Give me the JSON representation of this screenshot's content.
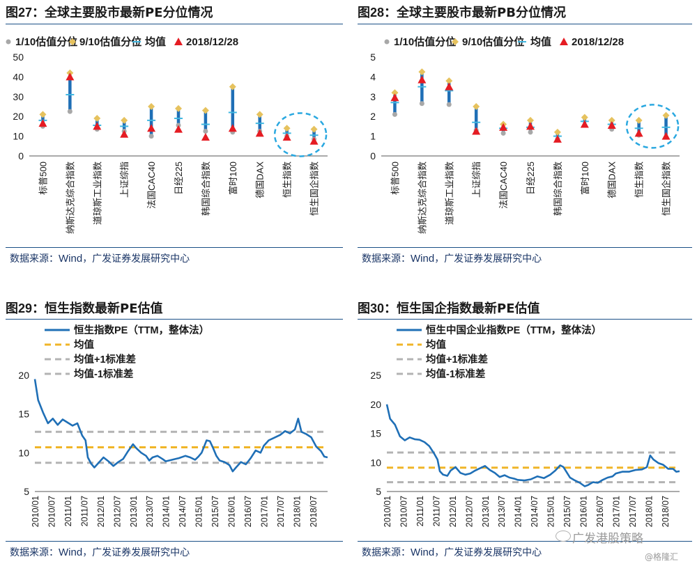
{
  "colors": {
    "blue": "#1f6fb6",
    "gray": "#a8a8a8",
    "gold": "#e6c25e",
    "avg": "#3fb6e0",
    "red": "#e51c23",
    "ring": "#2aa8e0",
    "line": "#1f6fb6",
    "mean": "#f0b528",
    "band": "#b3b3b3",
    "text": "#1a1a1a",
    "rule": "#1a4f86"
  },
  "source": {
    "prefix": "数据来源：",
    "wind": "Wind",
    "suffix": "，广发证券发展研究中心"
  },
  "watermark": {
    "account": "广发港股策略",
    "site": "@格隆汇"
  },
  "legend_range": {
    "p10": "1/10估值分位",
    "p90": "9/10估值分位",
    "avg": "均值",
    "latest": "2018/12/28"
  },
  "legend_line": {
    "mean": "均值",
    "plus": "均值+1标准差",
    "minus": "均值-1标准差"
  },
  "fig27": {
    "label": "图27",
    "title": "：全球主要股市最新PE分位情况"
  },
  "fig28": {
    "label": "图28",
    "title": "：全球主要股市最新PB分位情况"
  },
  "fig29": {
    "label": "图29",
    "title": "：恒生指数最新PE估值"
  },
  "fig30": {
    "label": "图30",
    "title": "：恒生国企指数最新PE估值"
  },
  "chart_data": [
    {
      "type": "range",
      "categories": [
        "标普500",
        "纳斯达克综合指数",
        "道琼斯工业指数",
        "上证综指",
        "法国CAC40",
        "日经225",
        "韩国综合指数",
        "富时100",
        "德国DAX",
        "恒生指数",
        "恒生国企指数"
      ],
      "ylim": [
        0,
        50
      ],
      "yticks": [
        0,
        10,
        20,
        30,
        40,
        50
      ],
      "series": [
        {
          "name": "1/10估值分位",
          "values": [
            15,
            22.5,
            13.5,
            12.5,
            10,
            15.5,
            12.5,
            12,
            12.5,
            10,
            8.5
          ]
        },
        {
          "name": "9/10估值分位",
          "values": [
            21,
            42,
            19,
            18,
            25,
            24,
            23,
            35,
            21,
            14,
            13.5
          ]
        },
        {
          "name": "均值",
          "values": [
            18,
            31,
            15.5,
            15,
            18,
            19,
            16,
            22,
            16.5,
            11.5,
            10.5
          ]
        },
        {
          "name": "2018/12/28",
          "values": [
            16.5,
            40,
            15,
            11,
            14,
            13.5,
            9.5,
            14,
            11.5,
            9.5,
            7.5
          ]
        }
      ],
      "highlight": [
        "恒生指数",
        "恒生国企指数"
      ]
    },
    {
      "type": "range",
      "categories": [
        "标普500",
        "纳斯达克综合指数",
        "道琼斯工业指数",
        "上证综指",
        "法国CAC40",
        "日经225",
        "韩国综合指数",
        "富时100",
        "德国DAX",
        "恒生指数",
        "恒生国企指数"
      ],
      "ylim": [
        0,
        5
      ],
      "yticks": [
        0,
        1,
        2,
        3,
        4,
        5
      ],
      "series": [
        {
          "name": "1/10估值分位",
          "values": [
            2.1,
            2.65,
            2.6,
            1.3,
            1.15,
            1.2,
            0.85,
            1.55,
            1.35,
            1.05,
            0.95
          ]
        },
        {
          "name": "9/10估值分位",
          "values": [
            3.2,
            4.25,
            3.8,
            2.5,
            1.6,
            1.8,
            1.2,
            1.95,
            1.8,
            1.8,
            2.05
          ]
        },
        {
          "name": "均值",
          "values": [
            2.7,
            3.5,
            3.3,
            1.7,
            1.4,
            1.45,
            1.0,
            1.75,
            1.6,
            1.4,
            1.45
          ]
        },
        {
          "name": "2018/12/28",
          "values": [
            2.95,
            3.85,
            3.5,
            1.25,
            1.45,
            1.5,
            0.85,
            1.6,
            1.55,
            1.15,
            1.0
          ]
        }
      ],
      "highlight": [
        "恒生指数",
        "恒生国企指数"
      ]
    },
    {
      "type": "line",
      "x_start": "2010-01",
      "x_end": "2018-12",
      "xticks": [
        "2010/01",
        "2010/07",
        "2011/01",
        "2011/07",
        "2012/01",
        "2012/07",
        "2013/01",
        "2013/07",
        "2014/01",
        "2014/07",
        "2015/01",
        "2015/07",
        "2016/01",
        "2016/07",
        "2017/01",
        "2017/07",
        "2018/01",
        "2018/07"
      ],
      "ylim": [
        5,
        20
      ],
      "yticks": [
        5,
        10,
        15,
        20
      ],
      "series": [
        {
          "name": "恒生指数PE（TTM，整体法）",
          "values": [
            [
              2010.0,
              19.5
            ],
            [
              2010.1,
              16.8
            ],
            [
              2010.25,
              15.2
            ],
            [
              2010.4,
              13.8
            ],
            [
              2010.55,
              14.4
            ],
            [
              2010.7,
              13.6
            ],
            [
              2010.85,
              14.3
            ],
            [
              2011.0,
              13.9
            ],
            [
              2011.15,
              13.5
            ],
            [
              2011.3,
              13.8
            ],
            [
              2011.45,
              12.2
            ],
            [
              2011.55,
              11.6
            ],
            [
              2011.62,
              9.4
            ],
            [
              2011.72,
              8.6
            ],
            [
              2011.82,
              8.1
            ],
            [
              2011.95,
              8.7
            ],
            [
              2012.1,
              9.4
            ],
            [
              2012.25,
              8.9
            ],
            [
              2012.4,
              8.3
            ],
            [
              2012.55,
              8.8
            ],
            [
              2012.7,
              9.2
            ],
            [
              2012.85,
              10.2
            ],
            [
              2013.0,
              11.1
            ],
            [
              2013.1,
              10.6
            ],
            [
              2013.25,
              10.0
            ],
            [
              2013.4,
              9.6
            ],
            [
              2013.5,
              9.0
            ],
            [
              2013.6,
              9.4
            ],
            [
              2013.75,
              9.6
            ],
            [
              2013.9,
              9.2
            ],
            [
              2014.0,
              8.9
            ],
            [
              2014.2,
              9.1
            ],
            [
              2014.4,
              9.3
            ],
            [
              2014.6,
              9.6
            ],
            [
              2014.75,
              9.4
            ],
            [
              2014.9,
              9.1
            ],
            [
              2015.0,
              9.5
            ],
            [
              2015.1,
              10.0
            ],
            [
              2015.25,
              11.6
            ],
            [
              2015.35,
              11.5
            ],
            [
              2015.45,
              10.6
            ],
            [
              2015.55,
              9.6
            ],
            [
              2015.65,
              9.0
            ],
            [
              2015.8,
              8.8
            ],
            [
              2015.95,
              8.4
            ],
            [
              2016.05,
              7.6
            ],
            [
              2016.15,
              8.1
            ],
            [
              2016.3,
              8.8
            ],
            [
              2016.45,
              8.5
            ],
            [
              2016.6,
              9.3
            ],
            [
              2016.75,
              10.3
            ],
            [
              2016.9,
              10.0
            ],
            [
              2017.0,
              10.9
            ],
            [
              2017.15,
              11.6
            ],
            [
              2017.3,
              11.9
            ],
            [
              2017.5,
              12.3
            ],
            [
              2017.65,
              12.8
            ],
            [
              2017.8,
              12.5
            ],
            [
              2017.95,
              13.0
            ],
            [
              2018.05,
              14.4
            ],
            [
              2018.15,
              12.7
            ],
            [
              2018.3,
              12.4
            ],
            [
              2018.45,
              12.0
            ],
            [
              2018.6,
              10.8
            ],
            [
              2018.75,
              10.2
            ],
            [
              2018.85,
              9.5
            ],
            [
              2018.95,
              9.4
            ]
          ]
        },
        {
          "name": "均值",
          "values": [
            [
              2010.0,
              10.7
            ],
            [
              2018.95,
              10.7
            ]
          ]
        },
        {
          "name": "均值+1标准差",
          "values": [
            [
              2010.0,
              12.7
            ],
            [
              2018.95,
              12.7
            ]
          ]
        },
        {
          "name": "均值-1标准差",
          "values": [
            [
              2010.0,
              8.7
            ],
            [
              2018.95,
              8.7
            ]
          ]
        }
      ]
    },
    {
      "type": "line",
      "x_start": "2010-01",
      "x_end": "2018-12",
      "xticks": [
        "2010/01",
        "2010/07",
        "2011/01",
        "2011/07",
        "2012/01",
        "2012/07",
        "2013/01",
        "2013/07",
        "2014/01",
        "2014/07",
        "2015/01",
        "2015/07",
        "2016/01",
        "2016/07",
        "2017/01",
        "2017/07",
        "2018/01",
        "2018/07"
      ],
      "ylim": [
        5,
        25
      ],
      "yticks": [
        5,
        10,
        15,
        20,
        25
      ],
      "series": [
        {
          "name": "恒生中国企业指数PE（TTM，整体法）",
          "values": [
            [
              2010.0,
              20.0
            ],
            [
              2010.1,
              17.5
            ],
            [
              2010.25,
              16.5
            ],
            [
              2010.4,
              14.5
            ],
            [
              2010.55,
              13.8
            ],
            [
              2010.7,
              14.3
            ],
            [
              2010.85,
              14.0
            ],
            [
              2011.0,
              13.9
            ],
            [
              2011.15,
              13.5
            ],
            [
              2011.3,
              12.8
            ],
            [
              2011.45,
              11.5
            ],
            [
              2011.55,
              10.5
            ],
            [
              2011.62,
              8.5
            ],
            [
              2011.72,
              7.9
            ],
            [
              2011.85,
              7.7
            ],
            [
              2011.95,
              8.6
            ],
            [
              2012.1,
              9.2
            ],
            [
              2012.25,
              8.2
            ],
            [
              2012.4,
              7.9
            ],
            [
              2012.55,
              8.1
            ],
            [
              2012.7,
              8.6
            ],
            [
              2012.85,
              9.0
            ],
            [
              2013.0,
              9.4
            ],
            [
              2013.15,
              8.7
            ],
            [
              2013.3,
              8.2
            ],
            [
              2013.45,
              7.5
            ],
            [
              2013.6,
              7.8
            ],
            [
              2013.75,
              7.4
            ],
            [
              2013.9,
              7.2
            ],
            [
              2014.0,
              7.0
            ],
            [
              2014.2,
              6.9
            ],
            [
              2014.4,
              7.1
            ],
            [
              2014.6,
              7.6
            ],
            [
              2014.8,
              7.3
            ],
            [
              2015.0,
              7.9
            ],
            [
              2015.15,
              8.6
            ],
            [
              2015.3,
              9.5
            ],
            [
              2015.4,
              9.2
            ],
            [
              2015.5,
              8.3
            ],
            [
              2015.6,
              7.4
            ],
            [
              2015.75,
              6.9
            ],
            [
              2015.9,
              6.5
            ],
            [
              2016.05,
              5.9
            ],
            [
              2016.15,
              6.1
            ],
            [
              2016.3,
              6.6
            ],
            [
              2016.45,
              6.5
            ],
            [
              2016.6,
              7.0
            ],
            [
              2016.75,
              7.4
            ],
            [
              2016.9,
              7.6
            ],
            [
              2017.0,
              8.1
            ],
            [
              2017.2,
              8.4
            ],
            [
              2017.4,
              8.4
            ],
            [
              2017.6,
              8.7
            ],
            [
              2017.8,
              8.8
            ],
            [
              2017.95,
              9.2
            ],
            [
              2018.05,
              11.2
            ],
            [
              2018.15,
              10.5
            ],
            [
              2018.3,
              9.9
            ],
            [
              2018.45,
              9.6
            ],
            [
              2018.6,
              8.9
            ],
            [
              2018.75,
              8.9
            ],
            [
              2018.85,
              8.4
            ],
            [
              2018.95,
              8.5
            ]
          ]
        },
        {
          "name": "均值",
          "values": [
            [
              2010.0,
              9.1
            ],
            [
              2018.95,
              9.1
            ]
          ]
        },
        {
          "name": "均值+1标准差",
          "values": [
            [
              2010.0,
              11.7
            ],
            [
              2018.95,
              11.7
            ]
          ]
        },
        {
          "name": "均值-1标准差",
          "values": [
            [
              2010.0,
              6.6
            ],
            [
              2018.95,
              6.6
            ]
          ]
        }
      ]
    }
  ]
}
